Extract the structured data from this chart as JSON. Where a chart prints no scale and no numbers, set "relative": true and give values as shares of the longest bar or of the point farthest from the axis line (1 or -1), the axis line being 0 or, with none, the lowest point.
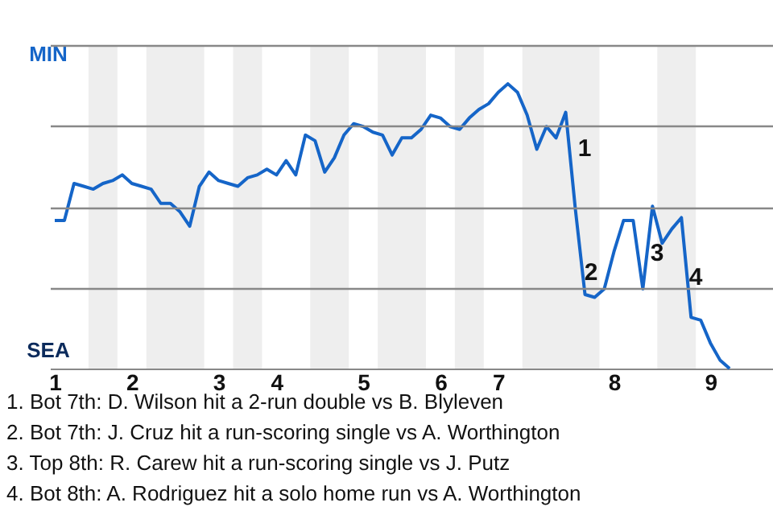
{
  "chart_data": {
    "type": "line",
    "relative": true,
    "line_style": "solid",
    "grid": "y",
    "categories": [
      "1",
      null,
      null,
      null,
      null,
      null,
      null,
      null,
      "2",
      null,
      null,
      null,
      null,
      null,
      null,
      null,
      null,
      "3",
      null,
      null,
      null,
      null,
      null,
      "4",
      null,
      null,
      null,
      null,
      null,
      null,
      null,
      null,
      "5",
      null,
      null,
      null,
      null,
      null,
      null,
      null,
      "6",
      null,
      null,
      null,
      null,
      null,
      "7",
      null,
      null,
      null,
      null,
      null,
      null,
      null,
      null,
      null,
      null,
      null,
      "8",
      null,
      null,
      null,
      null,
      null,
      null,
      null,
      null,
      null,
      "9",
      null,
      null
    ],
    "series": [
      {
        "color": "#1565c8",
        "values": [
          0.52,
          0.52,
          0.65,
          0.64,
          0.63,
          0.65,
          0.66,
          0.68,
          0.65,
          0.64,
          0.63,
          0.58,
          0.58,
          0.55,
          0.5,
          0.64,
          0.69,
          0.66,
          0.65,
          0.64,
          0.67,
          0.68,
          0.7,
          0.68,
          0.73,
          0.68,
          0.82,
          0.8,
          0.69,
          0.74,
          0.82,
          0.86,
          0.85,
          0.83,
          0.82,
          0.75,
          0.81,
          0.81,
          0.84,
          0.89,
          0.88,
          0.85,
          0.84,
          0.88,
          0.91,
          0.93,
          0.97,
          1,
          0.97,
          0.89,
          0.77,
          0.85,
          0.81,
          0.9,
          0.56,
          0.26,
          0.25,
          0.28,
          0.41,
          0.52,
          0.52,
          0.28,
          0.57,
          0.44,
          0.49,
          0.53,
          0.18,
          0.17,
          0.09,
          0.03,
          0
        ]
      }
    ],
    "annotations": [
      "MIN",
      "SEA",
      "1",
      "2",
      "3",
      "4",
      "1. Bot 7th: D. Wilson hit a 2-run double vs B. Blyleven",
      "2. Bot 7th: J. Cruz hit a run-scoring single vs A. Worthington",
      "3. Top 8th: R. Carew hit a run-scoring single vs J. Putz",
      "4. Bot 8th: A. Rodriguez hit a solo home run vs A. Worthington"
    ]
  }
}
